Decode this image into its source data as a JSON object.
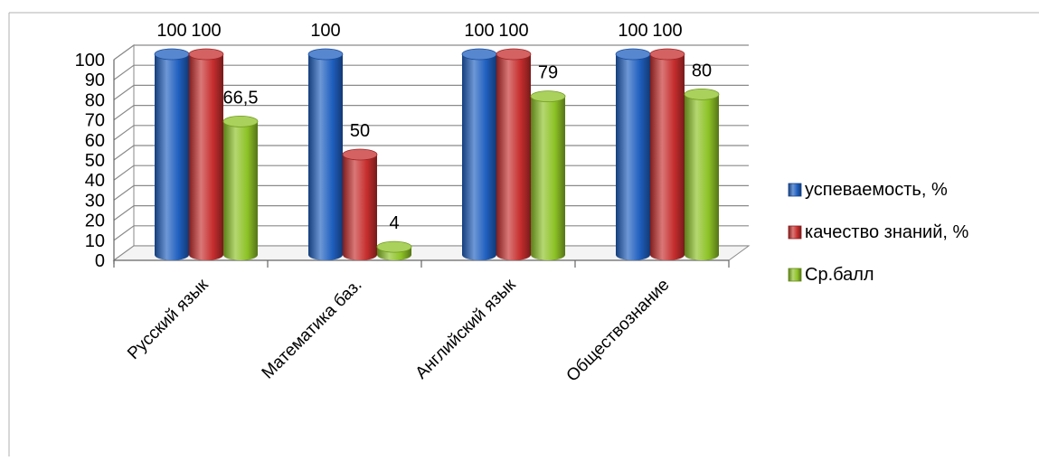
{
  "chart_data": {
    "type": "bar",
    "categories": [
      "Русский язык",
      "Математика баз.",
      "Английский язык",
      "Обществознание"
    ],
    "series": [
      {
        "name": "успеваемость, %",
        "color": "#1f5fbf",
        "values": [
          100,
          100,
          100,
          100
        ]
      },
      {
        "name": "качество знаний, %",
        "color": "#c62d2d",
        "values": [
          100,
          50,
          100,
          100
        ]
      },
      {
        "name": "Ср.балл",
        "color": "#8dc226",
        "values": [
          66.5,
          4,
          79,
          80
        ]
      }
    ],
    "data_labels": [
      [
        "100",
        "100",
        "66,5"
      ],
      [
        "100",
        "50",
        "4"
      ],
      [
        "100",
        "100",
        "79"
      ],
      [
        "100",
        "100",
        "80"
      ]
    ],
    "y_ticks": [
      "0",
      "10",
      "20",
      "30",
      "40",
      "50",
      "60",
      "70",
      "80",
      "90",
      "100"
    ],
    "ylim": [
      0,
      100
    ],
    "grid": true,
    "legend_position": "right",
    "style": "3d-cylinder"
  }
}
